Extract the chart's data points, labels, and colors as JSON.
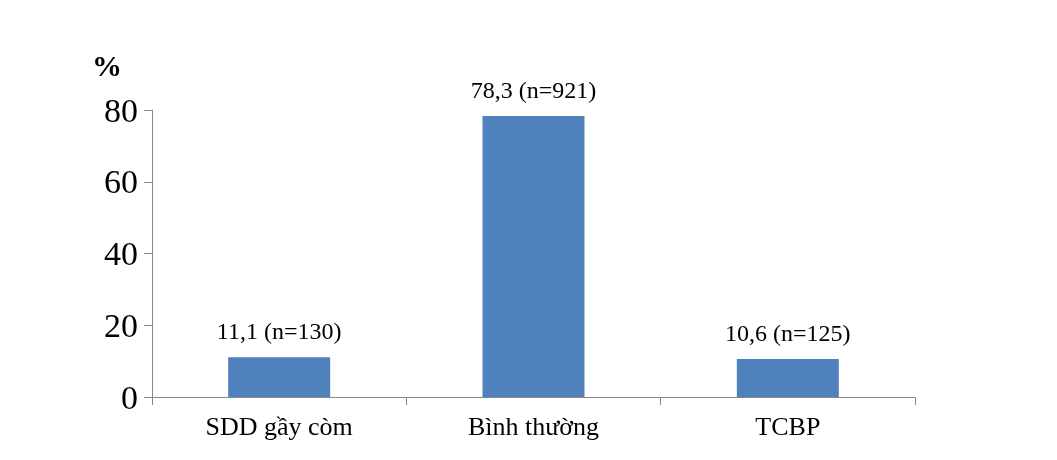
{
  "chart_data": {
    "type": "bar",
    "ylabel": "%",
    "categories": [
      "SDD gầy còm",
      "Bình thường",
      "TCBP"
    ],
    "values": [
      11.1,
      78.3,
      10.6
    ],
    "value_labels": [
      "11,1 (n=130)",
      "78,3 (n=921)",
      "10,6 (n=125)"
    ],
    "color": "#4f81bd",
    "ylim": [
      0,
      80
    ],
    "yticks": [
      0,
      20,
      40,
      60,
      80
    ]
  }
}
